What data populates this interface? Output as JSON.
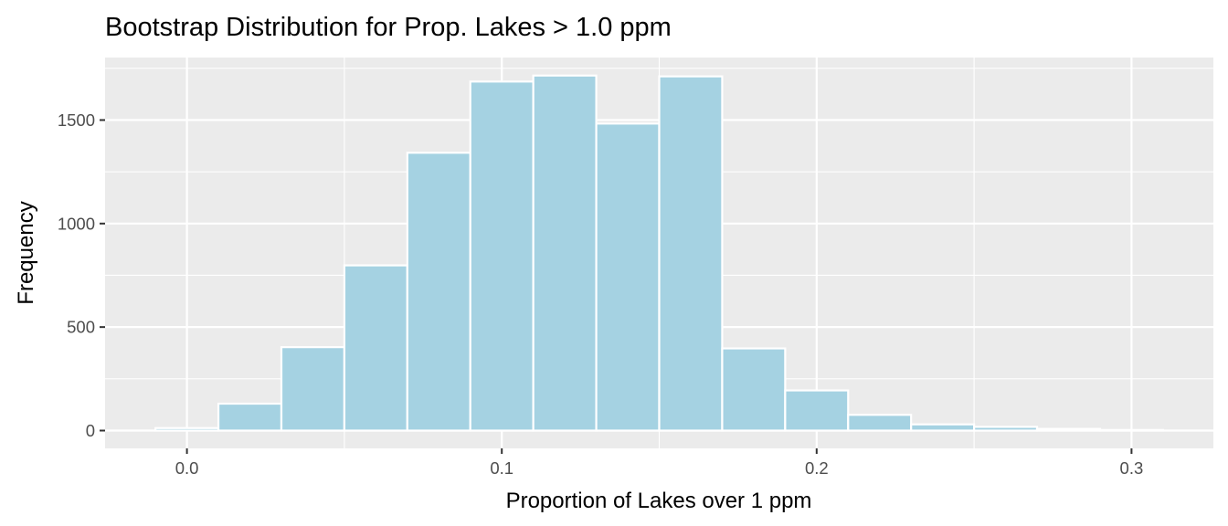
{
  "chart_data": {
    "type": "bar",
    "title": "Bootstrap Distribution for Prop. Lakes > 1.0 ppm",
    "xlabel": "Proportion of Lakes over 1 ppm",
    "ylabel": "Frequency",
    "bar_color": "#a5d2e2",
    "panel_color": "#ebebeb",
    "grid": true,
    "xlim": [
      -0.026,
      0.326
    ],
    "ylim": [
      -86,
      1802
    ],
    "x_ticks": [
      0.0,
      0.1,
      0.2,
      0.3
    ],
    "x_tick_labels": [
      "0.0",
      "0.1",
      "0.2",
      "0.3"
    ],
    "y_ticks": [
      0,
      500,
      1000,
      1500
    ],
    "y_tick_labels": [
      "0",
      "500",
      "1000",
      "1500"
    ],
    "bin_width": 0.02,
    "bin_centers": [
      0.0,
      0.02,
      0.04,
      0.06,
      0.08,
      0.1,
      0.12,
      0.14,
      0.16,
      0.18,
      0.2,
      0.22,
      0.24,
      0.26,
      0.28,
      0.3
    ],
    "values": [
      12,
      130,
      403,
      798,
      1342,
      1686,
      1715,
      1483,
      1711,
      397,
      194,
      76,
      30,
      18,
      8,
      3
    ]
  }
}
